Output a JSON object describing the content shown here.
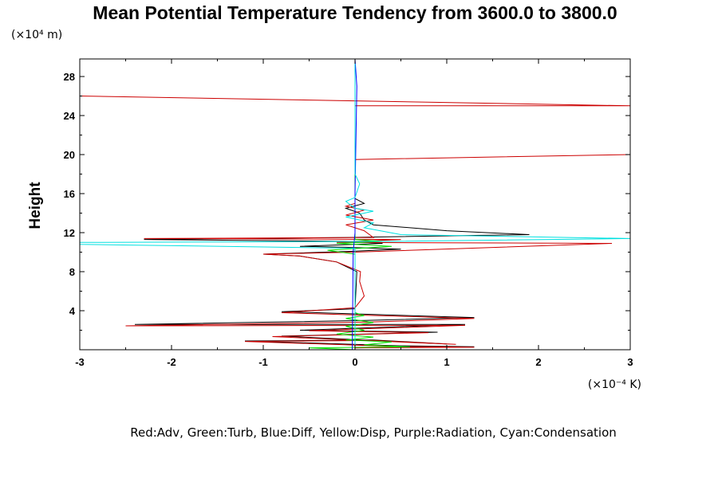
{
  "chart_data": {
    "type": "line",
    "title": "Mean Potential Temperature Tendency from 3600.0 to 3800.0",
    "ylabel": "Height",
    "xlabel": "",
    "y_unit_label": "(×10⁴ m)",
    "x_unit_label": "(×10⁻⁴ K)",
    "legend_text": "Red:Adv, Green:Turb, Blue:Diff, Yellow:Disp, Purple:Radiation, Cyan:Condensation",
    "xlim": [
      -3,
      3
    ],
    "ylim": [
      0,
      29.8
    ],
    "x_ticks": [
      -3,
      -2,
      -1,
      0,
      1,
      2,
      3
    ],
    "x_tick_labels": [
      "-3",
      "-2",
      "-1",
      "0",
      "1",
      "2",
      "3"
    ],
    "y_ticks": [
      4,
      8,
      12,
      16,
      20,
      24,
      28
    ],
    "y_tick_labels": [
      "4",
      "8",
      "12",
      "16",
      "20",
      "24",
      "28"
    ],
    "grid": false,
    "colors": {
      "black": "#000000",
      "red": "#cc0000",
      "green": "#00e000",
      "blue": "#0000ff",
      "cyan": "#00e0e0"
    },
    "series": [
      {
        "color": "black",
        "points": [
          [
            0,
            0.2
          ],
          [
            1.3,
            0.3
          ],
          [
            0.5,
            0.4
          ],
          [
            -1.2,
            0.9
          ],
          [
            0.2,
            1.0
          ],
          [
            1.0,
            0.6
          ],
          [
            -0.8,
            1.4
          ],
          [
            0.9,
            1.8
          ],
          [
            -0.6,
            2.0
          ],
          [
            1.2,
            2.6
          ],
          [
            -2.4,
            2.6
          ],
          [
            0.1,
            3.0
          ],
          [
            1.3,
            3.3
          ],
          [
            -0.8,
            3.9
          ],
          [
            0.0,
            4.2
          ],
          [
            0.02,
            8.0
          ],
          [
            -0.2,
            9.0
          ],
          [
            -0.6,
            9.6
          ],
          [
            -1.0,
            9.8
          ],
          [
            0.0,
            10.1
          ],
          [
            0.5,
            10.3
          ],
          [
            -0.1,
            10.5
          ],
          [
            -0.6,
            10.6
          ],
          [
            0.3,
            10.9
          ],
          [
            -0.1,
            11.1
          ],
          [
            -2.3,
            11.3
          ],
          [
            -0.1,
            11.5
          ],
          [
            1.9,
            11.8
          ],
          [
            1.0,
            12.2
          ],
          [
            0.2,
            12.8
          ],
          [
            0.1,
            13.3
          ],
          [
            0.05,
            14.0
          ],
          [
            -0.1,
            14.5
          ],
          [
            0.1,
            15.0
          ],
          [
            0.0,
            15.5
          ],
          [
            0.0,
            19.3
          ],
          [
            0.0,
            29.8
          ]
        ]
      },
      {
        "color": "red",
        "points": [
          [
            0,
            0.2
          ],
          [
            1.3,
            0.25
          ],
          [
            0.4,
            0.35
          ],
          [
            -1.2,
            0.85
          ],
          [
            0.2,
            0.95
          ],
          [
            1.1,
            0.55
          ],
          [
            -0.9,
            1.35
          ],
          [
            0.8,
            1.75
          ],
          [
            -0.5,
            1.95
          ],
          [
            1.2,
            2.5
          ],
          [
            -2.5,
            2.45
          ],
          [
            0.2,
            2.85
          ],
          [
            1.3,
            3.2
          ],
          [
            -0.8,
            3.8
          ],
          [
            0.0,
            4.3
          ],
          [
            0.1,
            5.5
          ],
          [
            0.05,
            7.0
          ],
          [
            0.06,
            8.0
          ],
          [
            -0.2,
            9.0
          ],
          [
            -0.6,
            9.6
          ],
          [
            -1.0,
            9.8
          ],
          [
            0.0,
            10.0
          ],
          [
            2.8,
            10.9
          ],
          [
            -0.2,
            11.0
          ],
          [
            0.5,
            11.3
          ],
          [
            -2.3,
            11.4
          ],
          [
            0.2,
            11.5
          ],
          [
            0.1,
            12.2
          ],
          [
            -0.1,
            12.8
          ],
          [
            0.2,
            13.3
          ],
          [
            -0.1,
            13.8
          ],
          [
            0.1,
            14.3
          ],
          [
            -0.1,
            14.7
          ],
          [
            0.0,
            15.0
          ],
          [
            0.0,
            19.5
          ],
          [
            3.0,
            20.0
          ],
          [
            0.0,
            19.5
          ],
          [
            0.0,
            25.0
          ],
          [
            3.0,
            25.0
          ],
          [
            -3.0,
            26.0
          ]
        ]
      },
      {
        "color": "green",
        "points": [
          [
            0.0,
            0.0
          ],
          [
            -0.5,
            0.2
          ],
          [
            0.6,
            0.3
          ],
          [
            0.1,
            0.5
          ],
          [
            0.4,
            0.8
          ],
          [
            -0.1,
            1.0
          ],
          [
            0.2,
            1.3
          ],
          [
            -0.2,
            1.6
          ],
          [
            0.1,
            2.0
          ],
          [
            -0.1,
            2.4
          ],
          [
            0.2,
            2.8
          ],
          [
            -0.1,
            3.2
          ],
          [
            0.1,
            3.5
          ],
          [
            0.0,
            3.8
          ],
          [
            0.0,
            9.8
          ],
          [
            -0.3,
            10.2
          ],
          [
            0.4,
            10.6
          ],
          [
            -0.2,
            10.9
          ],
          [
            0.3,
            11.1
          ],
          [
            0.0,
            11.3
          ],
          [
            0.0,
            29.8
          ]
        ]
      },
      {
        "color": "blue",
        "points": [
          [
            -0.03,
            0.0
          ],
          [
            -0.02,
            10.0
          ],
          [
            0.0,
            12.0
          ],
          [
            0.0,
            16.0
          ],
          [
            0.02,
            27.0
          ],
          [
            0.0,
            29.8
          ]
        ]
      },
      {
        "color": "cyan",
        "points": [
          [
            0.0,
            0.0
          ],
          [
            0.0,
            10.4
          ],
          [
            -3.0,
            10.8
          ],
          [
            -3.0,
            11.0
          ],
          [
            0.4,
            11.1
          ],
          [
            3.0,
            11.4
          ],
          [
            0.5,
            11.8
          ],
          [
            0.1,
            12.5
          ],
          [
            0.2,
            13.0
          ],
          [
            -0.1,
            13.6
          ],
          [
            0.2,
            14.2
          ],
          [
            0.0,
            14.5
          ],
          [
            -0.1,
            15.2
          ],
          [
            0.0,
            15.6
          ],
          [
            0.05,
            17.0
          ],
          [
            0.0,
            18.0
          ],
          [
            0.0,
            29.8
          ]
        ]
      }
    ]
  }
}
